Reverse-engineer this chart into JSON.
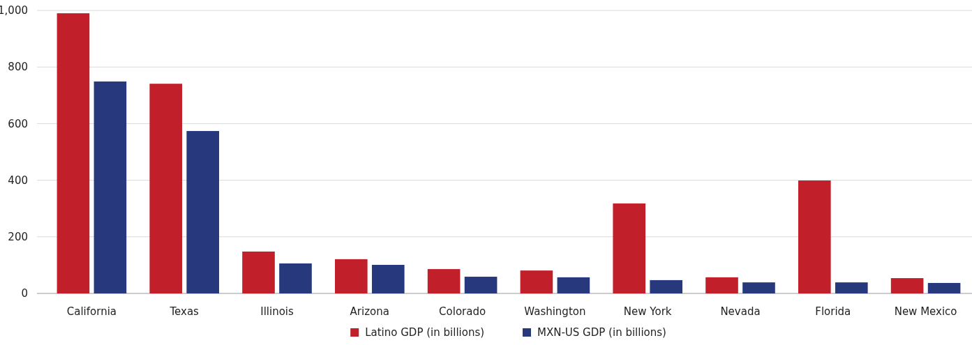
{
  "chart_data": {
    "type": "bar",
    "categories": [
      "California",
      "Texas",
      "Illinois",
      "Arizona",
      "Colorado",
      "Washington",
      "New York",
      "Nevada",
      "Florida",
      "New Mexico"
    ],
    "series": [
      {
        "name": "Latino GDP (in billions)",
        "color": "#c1202a",
        "values": [
          990,
          741,
          148,
          121,
          86,
          81,
          318,
          57,
          399,
          54
        ]
      },
      {
        "name": "MXN-US GDP (in billions)",
        "color": "#27397c",
        "values": [
          749,
          574,
          106,
          101,
          59,
          57,
          47,
          39,
          39,
          37
        ]
      }
    ],
    "ylim": [
      0,
      1000
    ],
    "yticks": [
      0,
      200,
      400,
      600,
      800,
      {
        "value": 1000,
        "label": "1,000"
      }
    ],
    "grid": "y",
    "legend": "bottom"
  }
}
